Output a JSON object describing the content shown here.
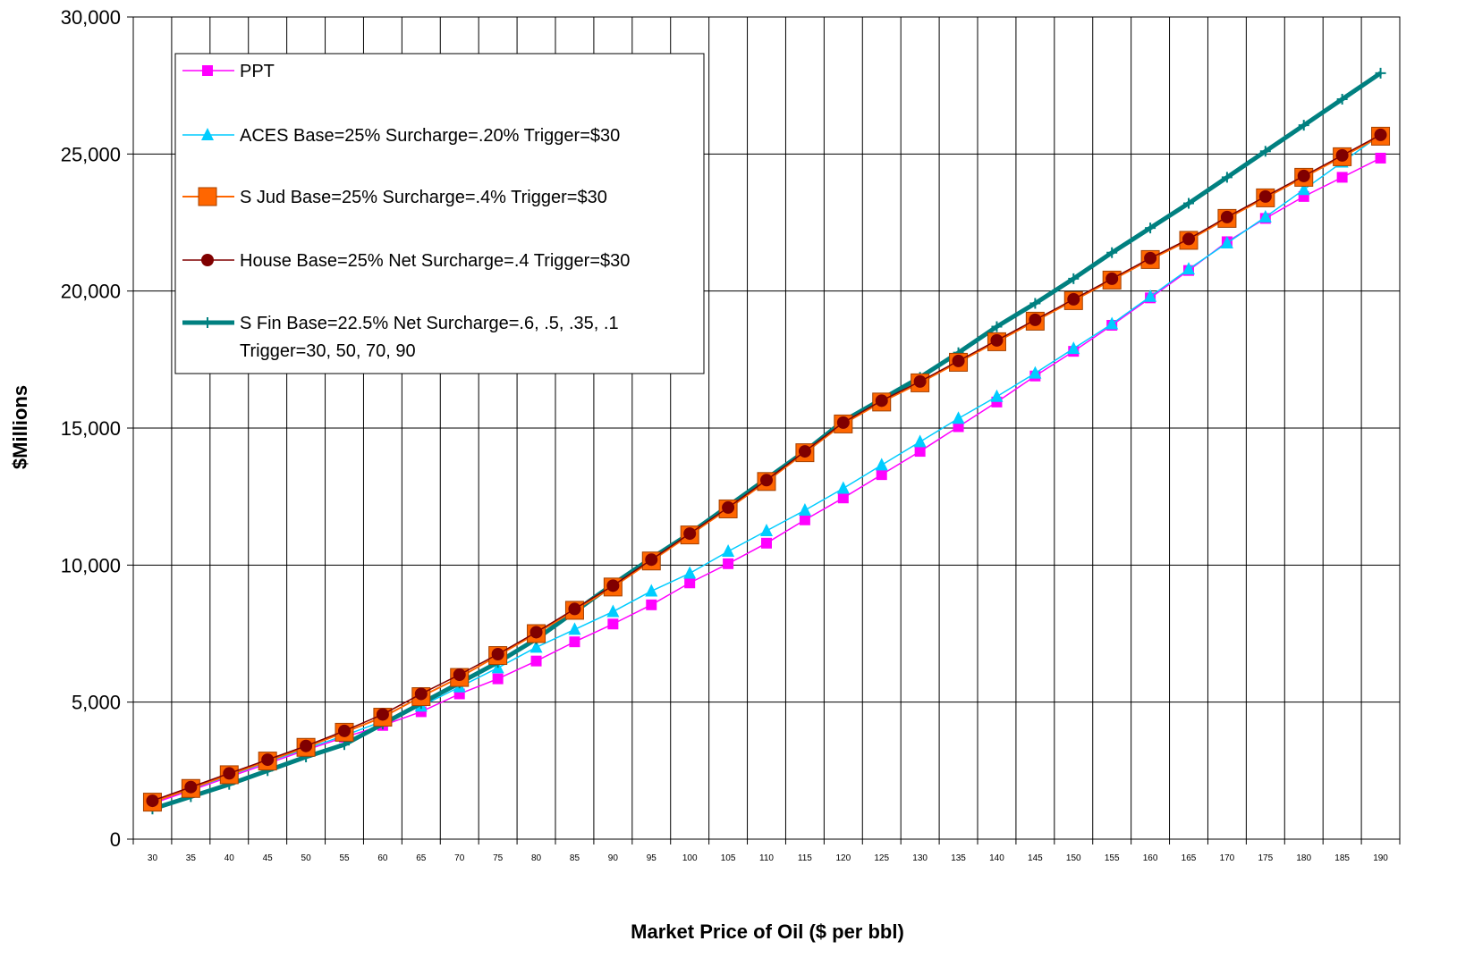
{
  "chart_data": {
    "type": "line",
    "title": "",
    "xlabel": "Market Price of Oil ($ per bbl)",
    "ylabel": "$Millions",
    "ylim": [
      0,
      30000
    ],
    "yticks": [
      0,
      5000,
      10000,
      15000,
      20000,
      25000,
      30000
    ],
    "ytick_labels": [
      "0",
      "5,000",
      "10,000",
      "15,000",
      "20,000",
      "25,000",
      "30,000"
    ],
    "grid": "vertical and horizontal major gridlines",
    "legend_position": "top-left, inside plot",
    "categories": [
      "30",
      "35",
      "40",
      "45",
      "50",
      "55",
      "60",
      "65",
      "70",
      "75",
      "80",
      "85",
      "90",
      "95",
      "100",
      "105",
      "110",
      "115",
      "120",
      "125",
      "130",
      "135",
      "140",
      "145",
      "150",
      "155",
      "160",
      "165",
      "170",
      "175",
      "180",
      "185",
      "190"
    ],
    "series": [
      {
        "name": "PPT",
        "color": "#ff00ff",
        "marker": "square",
        "values": [
          1300,
          1780,
          2270,
          2760,
          3250,
          3720,
          4150,
          4650,
          5300,
          5850,
          6500,
          7200,
          7850,
          8550,
          9350,
          10050,
          10800,
          11650,
          12450,
          13300,
          14150,
          15050,
          15950,
          16900,
          17800,
          18750,
          19750,
          20750,
          21800,
          22650,
          23450,
          24150,
          24850
        ]
      },
      {
        "name": "ACES  Base=25%  Surcharge=.20%  Trigger=$30",
        "color": "#00ccff",
        "marker": "triangle",
        "values": [
          1350,
          1830,
          2320,
          2820,
          3300,
          3780,
          4300,
          4850,
          5550,
          6250,
          7000,
          7650,
          8300,
          9050,
          9700,
          10500,
          11250,
          12000,
          12800,
          13650,
          14500,
          15350,
          16150,
          17000,
          17900,
          18800,
          19800,
          20800,
          21750,
          22700,
          23700,
          24700,
          25700
        ]
      },
      {
        "name": "S Jud  Base=25%   Surcharge=.4%  Trigger=$30",
        "color": "#ff6600",
        "marker": "big-square",
        "values": [
          1350,
          1850,
          2350,
          2850,
          3350,
          3900,
          4450,
          5200,
          5900,
          6700,
          7500,
          8350,
          9200,
          10150,
          11100,
          12050,
          13050,
          14100,
          15150,
          15950,
          16650,
          17400,
          18150,
          18900,
          19650,
          20400,
          21150,
          21850,
          22650,
          23400,
          24150,
          24900,
          25650
        ]
      },
      {
        "name": "House  Base=25%   Net Surcharge=.4  Trigger=$30",
        "color": "#800000",
        "marker": "circle",
        "values": [
          1400,
          1900,
          2400,
          2900,
          3400,
          3950,
          4550,
          5300,
          6000,
          6750,
          7550,
          8400,
          9250,
          10200,
          11150,
          12100,
          13100,
          14150,
          15200,
          16000,
          16700,
          17450,
          18200,
          18950,
          19700,
          20450,
          21200,
          21900,
          22700,
          23450,
          24200,
          24950,
          25700
        ]
      },
      {
        "name": "S Fin  Base=22.5%    Net Surcharge=.6, .5, .35, .1",
        "name_line2": "Trigger=30, 50, 70, 90",
        "color": "#008080",
        "marker": "plus",
        "values": [
          1100,
          1550,
          2000,
          2500,
          3000,
          3450,
          4200,
          4950,
          5700,
          6450,
          7300,
          8300,
          9300,
          10250,
          11150,
          12150,
          13150,
          14150,
          15250,
          16050,
          16850,
          17750,
          18700,
          19550,
          20450,
          21400,
          22300,
          23200,
          24150,
          25100,
          26050,
          27000,
          27950
        ]
      }
    ]
  }
}
